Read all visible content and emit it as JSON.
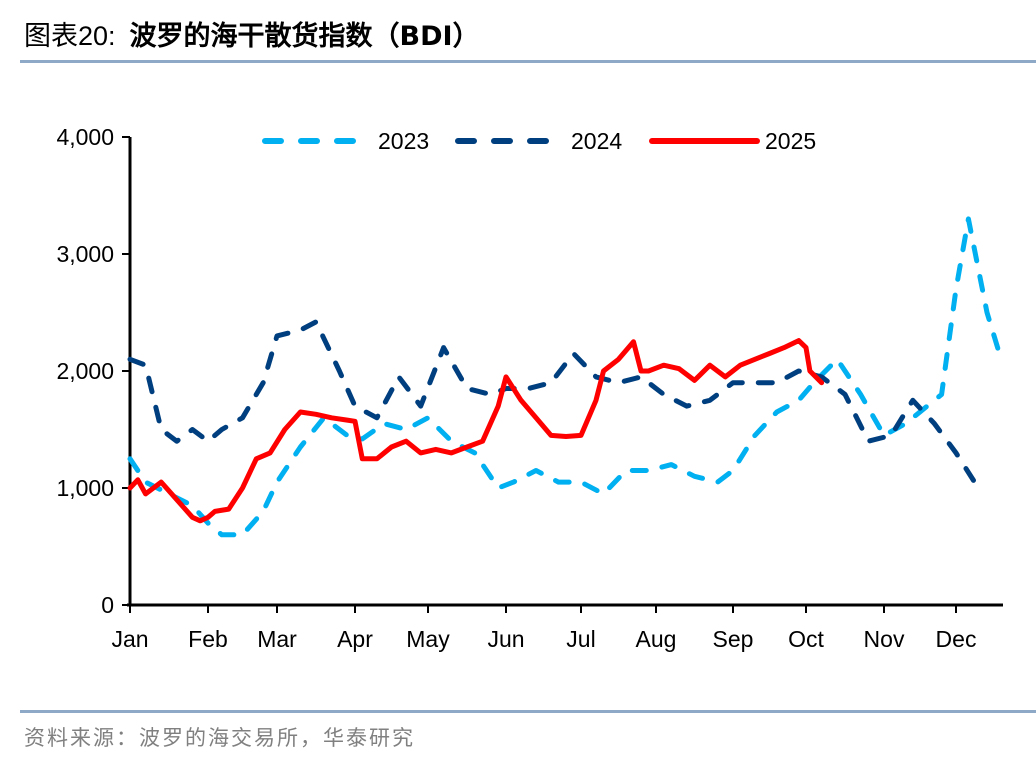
{
  "header": {
    "figure_no": "图表20:",
    "title": "波罗的海干散货指数（BDI）"
  },
  "footer": {
    "source": "资料来源：波罗的海交易所，华泰研究"
  },
  "colors": {
    "s2023": "#00b0f0",
    "s2024": "#003f7f",
    "s2025": "#ff0000",
    "rule": "#8ea9c8"
  },
  "chart_data": {
    "type": "line",
    "title": "波罗的海干散货指数（BDI）",
    "xlabel": "",
    "ylabel": "",
    "ylim": [
      0,
      4000
    ],
    "yticks": [
      "0",
      "1,000",
      "2,000",
      "3,000",
      "4,000"
    ],
    "xticks": [
      "Jan",
      "Feb",
      "Mar",
      "Apr",
      "May",
      "Jun",
      "Jul",
      "Aug",
      "Sep",
      "Oct",
      "Nov",
      "Dec"
    ],
    "grid": false,
    "legend_position": "top",
    "x_unit": "month (0 = Jan 1, 12 = Dec 31)",
    "series": [
      {
        "name": "2023",
        "style": "dashed",
        "color": "#00b0f0",
        "x": [
          0,
          0.2,
          0.5,
          0.8,
          1.0,
          1.2,
          1.5,
          1.8,
          2.0,
          2.3,
          2.6,
          2.9,
          3.1,
          3.4,
          3.7,
          4.0,
          4.3,
          4.6,
          4.9,
          5.1,
          5.4,
          5.7,
          6.0,
          6.3,
          6.6,
          6.9,
          7.2,
          7.5,
          7.8,
          8.0,
          8.3,
          8.6,
          8.9,
          9.1,
          9.4,
          9.7,
          10.0,
          10.3,
          10.6,
          10.8,
          11.0,
          11.2,
          11.5,
          11.7
        ],
        "values": [
          1250,
          1050,
          950,
          850,
          700,
          600,
          600,
          800,
          1050,
          1350,
          1600,
          1450,
          1420,
          1550,
          1500,
          1600,
          1400,
          1300,
          1000,
          1050,
          1150,
          1050,
          1050,
          950,
          1150,
          1150,
          1200,
          1100,
          1050,
          1150,
          1450,
          1650,
          1750,
          1900,
          2100,
          1800,
          1450,
          1550,
          1700,
          1800,
          2700,
          3300,
          2500,
          2150
        ]
      },
      {
        "name": "2024",
        "style": "dashed",
        "color": "#003f7f",
        "x": [
          0,
          0.2,
          0.4,
          0.6,
          0.8,
          1.0,
          1.2,
          1.5,
          1.8,
          2.0,
          2.3,
          2.5,
          2.8,
          3.0,
          3.3,
          3.6,
          3.9,
          4.2,
          4.5,
          4.8,
          5.0,
          5.3,
          5.6,
          5.9,
          6.2,
          6.5,
          6.8,
          7.1,
          7.4,
          7.7,
          8.0,
          8.3,
          8.6,
          8.9,
          9.2,
          9.5,
          9.8,
          10.1,
          10.4,
          10.7,
          11.0,
          11.3
        ],
        "values": [
          2100,
          2050,
          1500,
          1400,
          1500,
          1400,
          1500,
          1600,
          1900,
          2300,
          2350,
          2420,
          2000,
          1700,
          1600,
          1950,
          1700,
          2200,
          1850,
          1800,
          1850,
          1850,
          1900,
          2150,
          1950,
          1900,
          1950,
          1800,
          1700,
          1750,
          1900,
          1900,
          1900,
          2000,
          1950,
          1800,
          1400,
          1450,
          1750,
          1550,
          1300,
          1050
        ]
      },
      {
        "name": "2025",
        "style": "solid",
        "color": "#ff0000",
        "x": [
          0,
          0.1,
          0.2,
          0.4,
          0.6,
          0.8,
          0.9,
          1.0,
          1.1,
          1.3,
          1.5,
          1.7,
          1.9,
          2.1,
          2.3,
          2.5,
          2.7,
          2.9,
          3.0,
          3.1,
          3.3,
          3.5,
          3.7,
          3.9,
          4.1,
          4.3,
          4.5,
          4.7,
          4.9,
          5.0,
          5.2,
          5.4,
          5.6,
          5.8,
          6.0,
          6.2,
          6.3,
          6.5,
          6.7,
          6.8,
          6.9,
          7.1,
          7.3,
          7.5,
          7.7,
          7.9,
          8.1,
          8.3,
          8.5,
          8.7,
          8.9,
          9.0,
          9.05,
          9.2
        ],
        "values": [
          1000,
          1070,
          950,
          1050,
          900,
          750,
          720,
          750,
          800,
          820,
          1000,
          1250,
          1300,
          1500,
          1650,
          1630,
          1600,
          1580,
          1570,
          1250,
          1250,
          1350,
          1400,
          1300,
          1330,
          1300,
          1350,
          1400,
          1700,
          1950,
          1750,
          1600,
          1450,
          1440,
          1450,
          1750,
          2000,
          2100,
          2250,
          2000,
          2000,
          2050,
          2020,
          1920,
          2050,
          1950,
          2050,
          2100,
          2150,
          2200,
          2260,
          2200,
          2000,
          1900
        ]
      }
    ]
  }
}
